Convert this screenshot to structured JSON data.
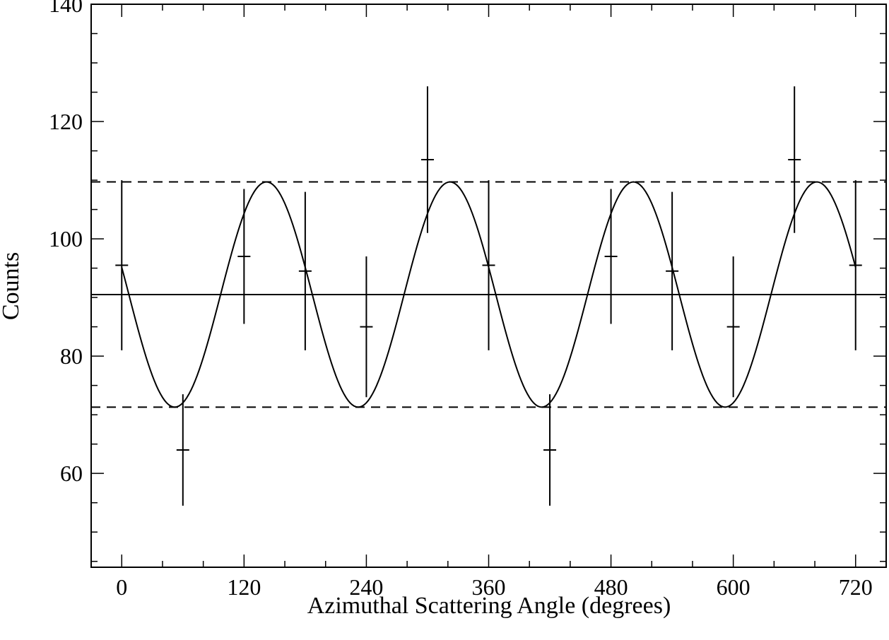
{
  "chart_data": {
    "type": "scatter",
    "xlabel": "Azimuthal Scattering Angle (degrees)",
    "ylabel": "Counts",
    "xlim": [
      -30,
      750
    ],
    "ylim": [
      44,
      140
    ],
    "xticks": [
      0,
      120,
      240,
      360,
      480,
      600,
      720
    ],
    "yticks": [
      60,
      80,
      100,
      120,
      140
    ],
    "grid": false,
    "points": [
      {
        "x": 0,
        "y": 95.5,
        "yerr": 14.5
      },
      {
        "x": 60,
        "y": 64,
        "yerr": 9.5
      },
      {
        "x": 120,
        "y": 97,
        "yerr": 11.5
      },
      {
        "x": 180,
        "y": 94.5,
        "yerr": 13.5
      },
      {
        "x": 240,
        "y": 85,
        "yerr": 12
      },
      {
        "x": 300,
        "y": 113.5,
        "yerr": 12.5
      },
      {
        "x": 360,
        "y": 95.5,
        "yerr": 14.5
      },
      {
        "x": 420,
        "y": 64,
        "yerr": 9.5
      },
      {
        "x": 480,
        "y": 97,
        "yerr": 11.5
      },
      {
        "x": 540,
        "y": 94.5,
        "yerr": 13.5
      },
      {
        "x": 600,
        "y": 85,
        "yerr": 12
      },
      {
        "x": 660,
        "y": 113.5,
        "yerr": 12.5
      },
      {
        "x": 720,
        "y": 95.5,
        "yerr": 14.5
      }
    ],
    "model": {
      "mean": 90.5,
      "amplitude": 19.2,
      "phase_deg": 142,
      "period_deg": 180
    },
    "reference_lines": [
      {
        "y": 90.5,
        "style": "solid"
      },
      {
        "y": 109.7,
        "style": "dashed"
      },
      {
        "y": 71.3,
        "style": "dashed"
      }
    ]
  }
}
